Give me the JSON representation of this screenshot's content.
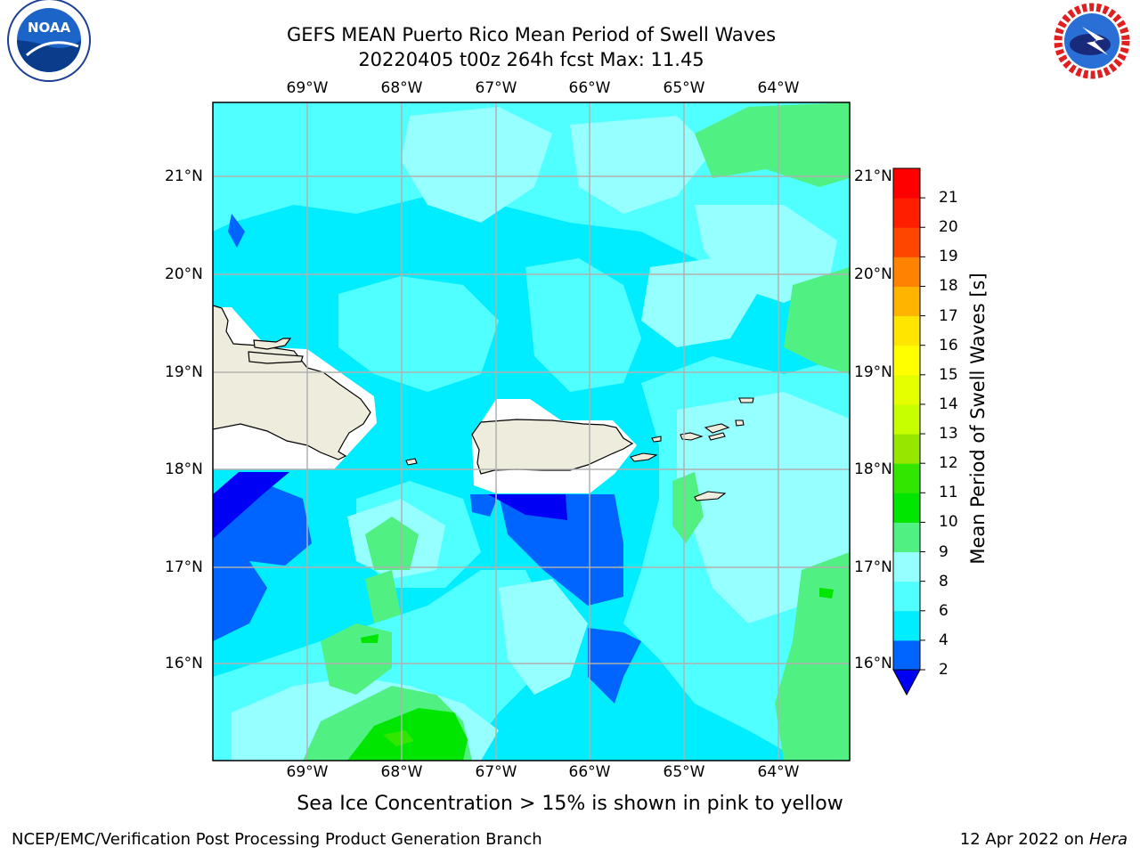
{
  "header": {
    "title_line1": "GEFS MEAN Puerto Rico Mean Period of Swell Waves",
    "title_line2": "20220405 t00z 264h fcst   Max: 11.45"
  },
  "map": {
    "lon_labels": [
      "69°W",
      "68°W",
      "67°W",
      "66°W",
      "65°W",
      "64°W"
    ],
    "lat_labels": [
      "21°N",
      "20°N",
      "19°N",
      "18°N",
      "17°N",
      "16°N"
    ],
    "note": "Sea Ice Concentration > 15% is shown in pink to yellow",
    "land_color": "#eeecdc",
    "grid_color": "#b0b0b0"
  },
  "colorbar": {
    "title": "Mean Period of Swell Waves [s]",
    "tick_labels": [
      "2",
      "4",
      "6",
      "8",
      "9",
      "10",
      "11",
      "12",
      "13",
      "14",
      "15",
      "16",
      "17",
      "18",
      "19",
      "20",
      "21"
    ],
    "colors": [
      "#0000f5",
      "#0064ff",
      "#00ecff",
      "#50ffff",
      "#96ffff",
      "#50f082",
      "#00e600",
      "#32e600",
      "#96e600",
      "#c8ff00",
      "#e6ff00",
      "#ffff00",
      "#ffe600",
      "#ffb400",
      "#ff8200",
      "#ff4600",
      "#ff1e00",
      "#ff0000"
    ]
  },
  "logos": {
    "left": "NOAA",
    "right": "NATIONAL WEATHER SERVICE"
  },
  "footer": {
    "left": "NCEP/EMC/Verification Post Processing Product Generation Branch",
    "right_date": "12 Apr 2022 on ",
    "right_host": "Hera"
  }
}
